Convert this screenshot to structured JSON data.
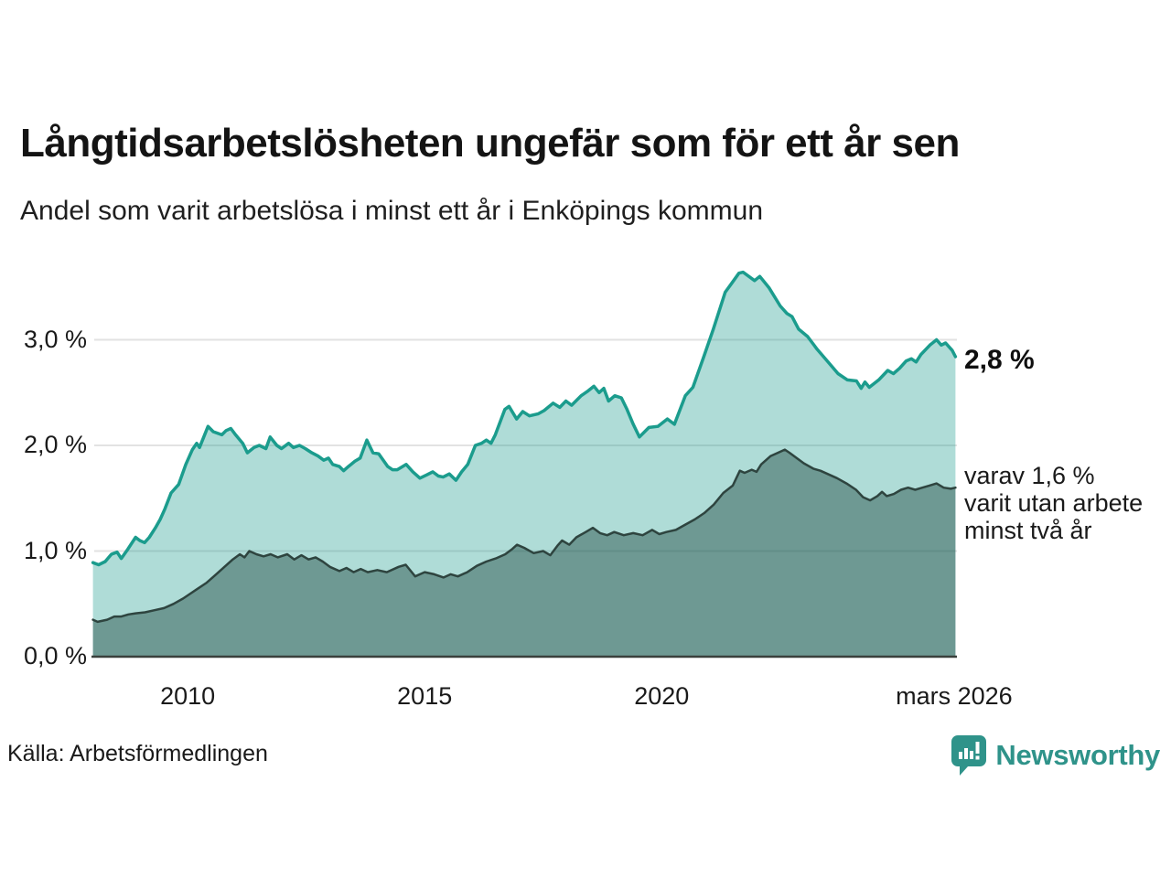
{
  "header": {
    "title": "Långtidsarbetslösheten ungefär som för ett år sen",
    "subtitle": "Andel som varit arbetslösa i minst ett år i Enköpings kommun"
  },
  "chart_data": {
    "type": "area",
    "title": "Långtidsarbetslösheten ungefär som för ett år sen",
    "subtitle": "Andel som varit arbetslösa i minst ett år i Enköpings kommun",
    "unit": "%",
    "grid": "horizontal",
    "xlim": [
      2007.97,
      2026.23
    ],
    "ylim": [
      0,
      3.79
    ],
    "colors": {
      "series1_line": "#1b9c8d",
      "series1_fill": "rgba(27,156,141,0.35)",
      "series2_line": "#2e443f",
      "series2_fill": "rgba(31,71,65,0.45)",
      "gridline": "#e2e2e2",
      "axis": "#3a403c"
    },
    "y_ticks": [
      {
        "value": 0,
        "label": "0,0 %"
      },
      {
        "value": 1,
        "label": "1,0 %"
      },
      {
        "value": 2,
        "label": "2,0 %"
      },
      {
        "value": 3,
        "label": "3,0 %"
      }
    ],
    "x_ticks": [
      {
        "value": 2010,
        "label": "2010"
      },
      {
        "value": 2015,
        "label": "2015"
      },
      {
        "value": 2020,
        "label": "2020"
      },
      {
        "value": 2026.17,
        "label": "mars 2026"
      }
    ],
    "series": [
      {
        "name": "Andel som varit arbetslösa minst ett år",
        "end_label": "2,8 %",
        "points": [
          [
            2008.0,
            0.89
          ],
          [
            2008.12,
            0.87
          ],
          [
            2008.26,
            0.9
          ],
          [
            2008.39,
            0.97
          ],
          [
            2008.51,
            0.99
          ],
          [
            2008.6,
            0.93
          ],
          [
            2008.74,
            1.02
          ],
          [
            2008.9,
            1.13
          ],
          [
            2008.99,
            1.1
          ],
          [
            2009.09,
            1.08
          ],
          [
            2009.19,
            1.13
          ],
          [
            2009.32,
            1.22
          ],
          [
            2009.42,
            1.3
          ],
          [
            2009.52,
            1.4
          ],
          [
            2009.65,
            1.55
          ],
          [
            2009.81,
            1.63
          ],
          [
            2009.96,
            1.82
          ],
          [
            2010.1,
            1.96
          ],
          [
            2010.19,
            2.02
          ],
          [
            2010.25,
            1.98
          ],
          [
            2010.43,
            2.18
          ],
          [
            2010.54,
            2.13
          ],
          [
            2010.72,
            2.1
          ],
          [
            2010.81,
            2.14
          ],
          [
            2010.91,
            2.16
          ],
          [
            2011.01,
            2.1
          ],
          [
            2011.16,
            2.02
          ],
          [
            2011.26,
            1.93
          ],
          [
            2011.4,
            1.98
          ],
          [
            2011.51,
            2.0
          ],
          [
            2011.65,
            1.97
          ],
          [
            2011.74,
            2.08
          ],
          [
            2011.88,
            2.0
          ],
          [
            2011.98,
            1.97
          ],
          [
            2012.13,
            2.02
          ],
          [
            2012.23,
            1.98
          ],
          [
            2012.36,
            2.0
          ],
          [
            2012.48,
            1.97
          ],
          [
            2012.62,
            1.93
          ],
          [
            2012.75,
            1.9
          ],
          [
            2012.87,
            1.86
          ],
          [
            2012.97,
            1.88
          ],
          [
            2013.06,
            1.82
          ],
          [
            2013.2,
            1.8
          ],
          [
            2013.29,
            1.76
          ],
          [
            2013.39,
            1.8
          ],
          [
            2013.53,
            1.85
          ],
          [
            2013.64,
            1.88
          ],
          [
            2013.78,
            2.05
          ],
          [
            2013.91,
            1.93
          ],
          [
            2014.03,
            1.92
          ],
          [
            2014.22,
            1.8
          ],
          [
            2014.32,
            1.77
          ],
          [
            2014.42,
            1.77
          ],
          [
            2014.61,
            1.82
          ],
          [
            2014.75,
            1.75
          ],
          [
            2014.9,
            1.69
          ],
          [
            2015.04,
            1.72
          ],
          [
            2015.17,
            1.75
          ],
          [
            2015.29,
            1.71
          ],
          [
            2015.39,
            1.7
          ],
          [
            2015.52,
            1.73
          ],
          [
            2015.66,
            1.67
          ],
          [
            2015.78,
            1.75
          ],
          [
            2015.91,
            1.82
          ],
          [
            2016.07,
            2.0
          ],
          [
            2016.2,
            2.02
          ],
          [
            2016.3,
            2.05
          ],
          [
            2016.4,
            2.02
          ],
          [
            2016.49,
            2.1
          ],
          [
            2016.69,
            2.34
          ],
          [
            2016.78,
            2.37
          ],
          [
            2016.94,
            2.25
          ],
          [
            2017.07,
            2.32
          ],
          [
            2017.21,
            2.28
          ],
          [
            2017.4,
            2.3
          ],
          [
            2017.52,
            2.33
          ],
          [
            2017.71,
            2.4
          ],
          [
            2017.85,
            2.36
          ],
          [
            2017.98,
            2.42
          ],
          [
            2018.1,
            2.38
          ],
          [
            2018.3,
            2.47
          ],
          [
            2018.43,
            2.51
          ],
          [
            2018.57,
            2.56
          ],
          [
            2018.68,
            2.5
          ],
          [
            2018.78,
            2.54
          ],
          [
            2018.88,
            2.42
          ],
          [
            2019.01,
            2.47
          ],
          [
            2019.15,
            2.45
          ],
          [
            2019.26,
            2.35
          ],
          [
            2019.4,
            2.2
          ],
          [
            2019.53,
            2.08
          ],
          [
            2019.73,
            2.17
          ],
          [
            2019.92,
            2.18
          ],
          [
            2020.12,
            2.25
          ],
          [
            2020.27,
            2.2
          ],
          [
            2020.5,
            2.47
          ],
          [
            2020.66,
            2.55
          ],
          [
            2020.89,
            2.84
          ],
          [
            2021.09,
            3.1
          ],
          [
            2021.34,
            3.45
          ],
          [
            2021.47,
            3.53
          ],
          [
            2021.63,
            3.63
          ],
          [
            2021.72,
            3.64
          ],
          [
            2021.96,
            3.56
          ],
          [
            2022.07,
            3.6
          ],
          [
            2022.27,
            3.49
          ],
          [
            2022.5,
            3.32
          ],
          [
            2022.64,
            3.25
          ],
          [
            2022.75,
            3.22
          ],
          [
            2022.89,
            3.1
          ],
          [
            2023.08,
            3.03
          ],
          [
            2023.28,
            2.91
          ],
          [
            2023.53,
            2.78
          ],
          [
            2023.72,
            2.68
          ],
          [
            2023.92,
            2.62
          ],
          [
            2024.11,
            2.61
          ],
          [
            2024.21,
            2.54
          ],
          [
            2024.29,
            2.6
          ],
          [
            2024.38,
            2.55
          ],
          [
            2024.58,
            2.62
          ],
          [
            2024.77,
            2.71
          ],
          [
            2024.89,
            2.68
          ],
          [
            2025.02,
            2.73
          ],
          [
            2025.16,
            2.8
          ],
          [
            2025.27,
            2.82
          ],
          [
            2025.37,
            2.79
          ],
          [
            2025.47,
            2.86
          ],
          [
            2025.66,
            2.95
          ],
          [
            2025.8,
            3.0
          ],
          [
            2025.9,
            2.95
          ],
          [
            2025.99,
            2.97
          ],
          [
            2026.13,
            2.9
          ],
          [
            2026.2,
            2.84
          ]
        ]
      },
      {
        "name": "varav utan arbete minst två år",
        "end_label": "varav 1,6 % varit utan arbete minst två år",
        "points": [
          [
            2008.0,
            0.35
          ],
          [
            2008.1,
            0.33
          ],
          [
            2008.3,
            0.35
          ],
          [
            2008.45,
            0.38
          ],
          [
            2008.6,
            0.38
          ],
          [
            2008.75,
            0.4
          ],
          [
            2008.9,
            0.41
          ],
          [
            2009.1,
            0.42
          ],
          [
            2009.3,
            0.44
          ],
          [
            2009.5,
            0.46
          ],
          [
            2009.7,
            0.5
          ],
          [
            2009.9,
            0.55
          ],
          [
            2010.0,
            0.58
          ],
          [
            2010.2,
            0.64
          ],
          [
            2010.4,
            0.7
          ],
          [
            2010.6,
            0.78
          ],
          [
            2010.8,
            0.86
          ],
          [
            2010.95,
            0.92
          ],
          [
            2011.1,
            0.97
          ],
          [
            2011.2,
            0.94
          ],
          [
            2011.3,
            1.0
          ],
          [
            2011.45,
            0.97
          ],
          [
            2011.6,
            0.95
          ],
          [
            2011.75,
            0.97
          ],
          [
            2011.9,
            0.94
          ],
          [
            2012.1,
            0.97
          ],
          [
            2012.25,
            0.92
          ],
          [
            2012.4,
            0.96
          ],
          [
            2012.55,
            0.92
          ],
          [
            2012.7,
            0.94
          ],
          [
            2012.85,
            0.9
          ],
          [
            2013.0,
            0.85
          ],
          [
            2013.2,
            0.81
          ],
          [
            2013.35,
            0.84
          ],
          [
            2013.5,
            0.8
          ],
          [
            2013.65,
            0.83
          ],
          [
            2013.8,
            0.8
          ],
          [
            2014.0,
            0.82
          ],
          [
            2014.2,
            0.8
          ],
          [
            2014.45,
            0.85
          ],
          [
            2014.6,
            0.87
          ],
          [
            2014.8,
            0.76
          ],
          [
            2015.0,
            0.8
          ],
          [
            2015.2,
            0.78
          ],
          [
            2015.4,
            0.75
          ],
          [
            2015.55,
            0.78
          ],
          [
            2015.7,
            0.76
          ],
          [
            2015.9,
            0.8
          ],
          [
            2016.1,
            0.86
          ],
          [
            2016.3,
            0.9
          ],
          [
            2016.5,
            0.93
          ],
          [
            2016.7,
            0.97
          ],
          [
            2016.85,
            1.02
          ],
          [
            2016.95,
            1.06
          ],
          [
            2017.1,
            1.03
          ],
          [
            2017.3,
            0.98
          ],
          [
            2017.5,
            1.0
          ],
          [
            2017.65,
            0.96
          ],
          [
            2017.8,
            1.05
          ],
          [
            2017.9,
            1.1
          ],
          [
            2018.05,
            1.06
          ],
          [
            2018.2,
            1.13
          ],
          [
            2018.4,
            1.18
          ],
          [
            2018.55,
            1.22
          ],
          [
            2018.7,
            1.17
          ],
          [
            2018.85,
            1.15
          ],
          [
            2019.0,
            1.18
          ],
          [
            2019.2,
            1.15
          ],
          [
            2019.4,
            1.17
          ],
          [
            2019.6,
            1.15
          ],
          [
            2019.8,
            1.2
          ],
          [
            2019.95,
            1.16
          ],
          [
            2020.1,
            1.18
          ],
          [
            2020.3,
            1.2
          ],
          [
            2020.5,
            1.25
          ],
          [
            2020.7,
            1.3
          ],
          [
            2020.9,
            1.36
          ],
          [
            2021.1,
            1.44
          ],
          [
            2021.3,
            1.55
          ],
          [
            2021.5,
            1.62
          ],
          [
            2021.65,
            1.76
          ],
          [
            2021.75,
            1.74
          ],
          [
            2021.9,
            1.77
          ],
          [
            2022.0,
            1.75
          ],
          [
            2022.1,
            1.82
          ],
          [
            2022.3,
            1.9
          ],
          [
            2022.45,
            1.93
          ],
          [
            2022.6,
            1.96
          ],
          [
            2022.7,
            1.93
          ],
          [
            2022.85,
            1.88
          ],
          [
            2023.0,
            1.83
          ],
          [
            2023.2,
            1.78
          ],
          [
            2023.35,
            1.76
          ],
          [
            2023.5,
            1.73
          ],
          [
            2023.7,
            1.69
          ],
          [
            2023.9,
            1.64
          ],
          [
            2024.1,
            1.58
          ],
          [
            2024.25,
            1.51
          ],
          [
            2024.4,
            1.48
          ],
          [
            2024.55,
            1.52
          ],
          [
            2024.65,
            1.56
          ],
          [
            2024.75,
            1.52
          ],
          [
            2024.9,
            1.54
          ],
          [
            2025.05,
            1.58
          ],
          [
            2025.2,
            1.6
          ],
          [
            2025.35,
            1.58
          ],
          [
            2025.5,
            1.6
          ],
          [
            2025.65,
            1.62
          ],
          [
            2025.8,
            1.64
          ],
          [
            2025.95,
            1.6
          ],
          [
            2026.1,
            1.59
          ],
          [
            2026.2,
            1.6
          ]
        ]
      }
    ]
  },
  "annotations": {
    "series1_end_value": "2,8 %",
    "series2_note_lines": [
      "varav 1,6 %",
      "varit utan arbete",
      "minst två år"
    ]
  },
  "footer": {
    "source": "Källa: Arbetsförmedlingen",
    "brand": "Newsworthy"
  }
}
